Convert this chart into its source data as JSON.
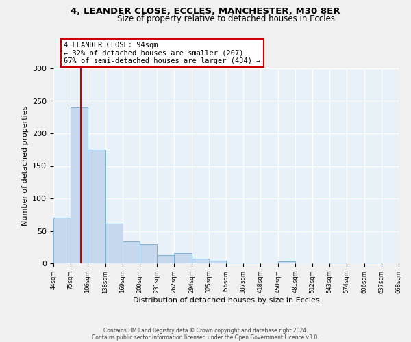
{
  "title": "4, LEANDER CLOSE, ECCLES, MANCHESTER, M30 8ER",
  "subtitle": "Size of property relative to detached houses in Eccles",
  "xlabel": "Distribution of detached houses by size in Eccles",
  "ylabel": "Number of detached properties",
  "bar_color": "#c5d8ed",
  "bar_edge_color": "#7ab0d4",
  "background_color": "#e8f0f8",
  "fig_background_color": "#f0f0f0",
  "grid_color": "#ffffff",
  "red_line_x": 94,
  "annotation_title": "4 LEANDER CLOSE: 94sqm",
  "annotation_line1": "← 32% of detached houses are smaller (207)",
  "annotation_line2": "67% of semi-detached houses are larger (434) →",
  "annotation_box_color": "#ffffff",
  "annotation_box_edge": "#cc0000",
  "bin_edges": [
    44,
    75,
    106,
    138,
    169,
    200,
    231,
    262,
    294,
    325,
    356,
    387,
    418,
    450,
    481,
    512,
    543,
    574,
    606,
    637,
    668
  ],
  "bar_heights": [
    71,
    240,
    175,
    61,
    34,
    29,
    13,
    16,
    7,
    4,
    1,
    1,
    0,
    3,
    0,
    0,
    1,
    0,
    1,
    0
  ],
  "tick_labels": [
    "44sqm",
    "75sqm",
    "106sqm",
    "138sqm",
    "169sqm",
    "200sqm",
    "231sqm",
    "262sqm",
    "294sqm",
    "325sqm",
    "356sqm",
    "387sqm",
    "418sqm",
    "450sqm",
    "481sqm",
    "512sqm",
    "543sqm",
    "574sqm",
    "606sqm",
    "637sqm",
    "668sqm"
  ],
  "ylim": [
    0,
    300
  ],
  "yticks": [
    0,
    50,
    100,
    150,
    200,
    250,
    300
  ],
  "footer_line1": "Contains HM Land Registry data © Crown copyright and database right 2024.",
  "footer_line2": "Contains public sector information licensed under the Open Government Licence v3.0."
}
